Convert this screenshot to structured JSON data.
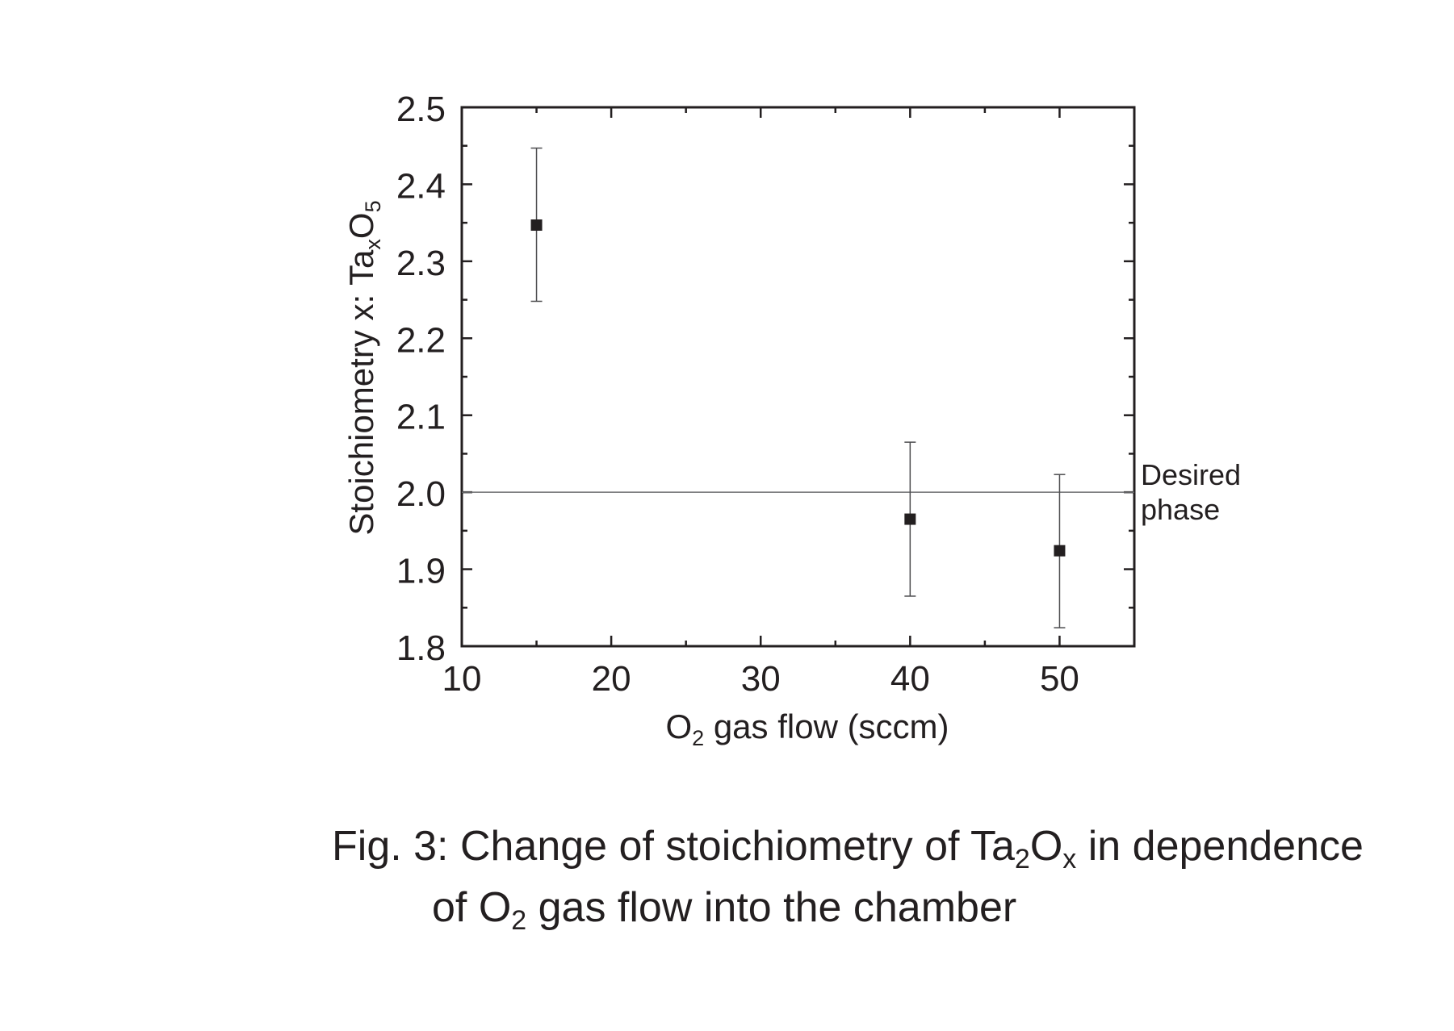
{
  "chart_data": {
    "type": "scatter",
    "xlabel": {
      "main": "O",
      "sub": "2",
      "rest": " gas flow (sccm)"
    },
    "ylabel": {
      "main": "Stoichiometry x: Ta",
      "sub1": "x",
      "mid": "O",
      "sub2": "5"
    },
    "xlim": [
      10,
      55
    ],
    "ylim": [
      1.8,
      2.5
    ],
    "xticks": [
      10,
      20,
      30,
      40,
      50
    ],
    "xtick_labels": [
      "10",
      "20",
      "30",
      "40",
      "50"
    ],
    "yticks": [
      1.8,
      1.9,
      2.0,
      2.1,
      2.2,
      2.3,
      2.4,
      2.5
    ],
    "ytick_labels": [
      "1.8",
      "1.9",
      "2.0",
      "2.1",
      "2.2",
      "2.3",
      "2.4",
      "2.5"
    ],
    "grid": false,
    "series": [
      {
        "marker": "square",
        "color": "#231f20",
        "points": [
          {
            "x": 15,
            "y": 2.347,
            "err_low": 2.248,
            "err_high": 2.447
          },
          {
            "x": 40,
            "y": 1.965,
            "err_low": 1.865,
            "err_high": 2.065
          },
          {
            "x": 50,
            "y": 1.924,
            "err_low": 1.824,
            "err_high": 2.023
          }
        ]
      }
    ],
    "reference_lines": [
      {
        "axis": "y",
        "value": 2.0,
        "label": [
          "Desired",
          "phase"
        ]
      }
    ]
  },
  "caption": {
    "line1": {
      "before": "Fig. 3: Change of stoichiometry of Ta",
      "sub1": "2",
      "mid": "O",
      "sub2": "x",
      "after": " in dependence"
    },
    "line2": {
      "before": "of O",
      "sub1": "2",
      "after": " gas flow into the chamber"
    }
  }
}
